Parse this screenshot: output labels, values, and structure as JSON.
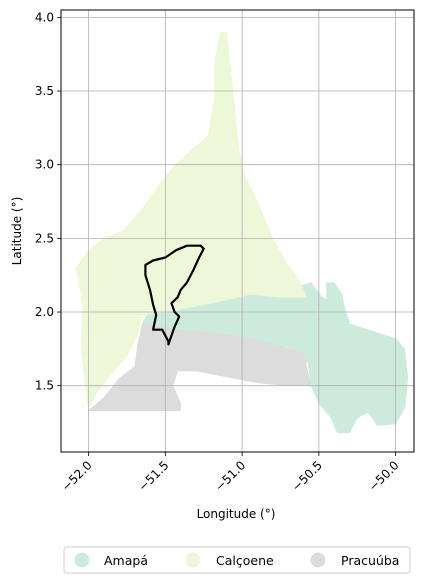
{
  "chart_data": {
    "type": "map",
    "xlabel": "Longitude (°)",
    "ylabel": "Latitude (°)",
    "xlim": [
      -52.18,
      -49.88
    ],
    "ylim": [
      1.05,
      4.05
    ],
    "xticks": [
      -52.0,
      -51.5,
      -51.0,
      -50.5,
      -50.0
    ],
    "xtick_labels": [
      "−52.0",
      "−51.5",
      "−51.0",
      "−50.5",
      "−50.0"
    ],
    "yticks": [
      1.5,
      2.0,
      2.5,
      3.0,
      3.5,
      4.0
    ],
    "ytick_labels": [
      "1.5",
      "2.0",
      "2.5",
      "3.0",
      "3.5",
      "4.0"
    ],
    "grid": true,
    "legend_position": "bottom-center",
    "regions": [
      {
        "name": "Amapá",
        "color": "#cdebdd",
        "polygons": [
          [
            [
              -51.62,
              1.98
            ],
            [
              -51.45,
              2.02
            ],
            [
              -51.2,
              2.08
            ],
            [
              -50.95,
              2.13
            ],
            [
              -50.7,
              2.15
            ],
            [
              -50.55,
              2.2
            ],
            [
              -50.48,
              2.1
            ],
            [
              -50.38,
              2.05
            ],
            [
              -50.3,
              1.92
            ],
            [
              -50.18,
              1.88
            ],
            [
              -50.0,
              1.82
            ],
            [
              -49.94,
              1.75
            ],
            [
              -49.92,
              1.55
            ],
            [
              -49.94,
              1.35
            ],
            [
              -50.0,
              1.24
            ],
            [
              -50.12,
              1.23
            ],
            [
              -50.18,
              1.32
            ],
            [
              -50.25,
              1.28
            ],
            [
              -50.3,
              1.18
            ],
            [
              -50.38,
              1.18
            ],
            [
              -50.42,
              1.28
            ],
            [
              -50.5,
              1.38
            ],
            [
              -50.55,
              1.5
            ],
            [
              -50.57,
              1.65
            ],
            [
              -50.7,
              1.76
            ],
            [
              -51.0,
              1.82
            ],
            [
              -51.3,
              1.84
            ],
            [
              -51.55,
              1.87
            ],
            [
              -51.65,
              1.92
            ]
          ],
          [
            [
              -50.45,
              2.2
            ],
            [
              -50.4,
              2.2
            ],
            [
              -50.35,
              2.12
            ],
            [
              -50.33,
              2.02
            ],
            [
              -50.3,
              1.93
            ],
            [
              -50.36,
              1.9
            ],
            [
              -50.42,
              1.98
            ],
            [
              -50.45,
              2.08
            ]
          ]
        ]
      },
      {
        "name": "Calçoene",
        "color": "#eef8d9",
        "polygons": [
          [
            [
              -51.14,
              3.9
            ],
            [
              -51.1,
              3.9
            ],
            [
              -51.08,
              3.7
            ],
            [
              -51.06,
              3.5
            ],
            [
              -51.04,
              3.3
            ],
            [
              -51.02,
              3.1
            ],
            [
              -50.98,
              2.92
            ],
            [
              -50.9,
              2.75
            ],
            [
              -50.8,
              2.5
            ],
            [
              -50.72,
              2.35
            ],
            [
              -50.62,
              2.2
            ],
            [
              -50.58,
              2.1
            ],
            [
              -50.75,
              2.1
            ],
            [
              -50.95,
              2.12
            ],
            [
              -51.2,
              2.06
            ],
            [
              -51.5,
              2.0
            ],
            [
              -51.65,
              1.98
            ],
            [
              -51.68,
              1.85
            ],
            [
              -51.75,
              1.7
            ],
            [
              -51.85,
              1.58
            ],
            [
              -51.95,
              1.45
            ],
            [
              -52.0,
              1.33
            ],
            [
              -52.02,
              1.5
            ],
            [
              -52.05,
              1.75
            ],
            [
              -52.04,
              2.05
            ],
            [
              -52.08,
              2.3
            ],
            [
              -52.0,
              2.42
            ],
            [
              -51.9,
              2.5
            ],
            [
              -51.78,
              2.55
            ],
            [
              -51.65,
              2.7
            ],
            [
              -51.55,
              2.85
            ],
            [
              -51.45,
              2.98
            ],
            [
              -51.35,
              3.08
            ],
            [
              -51.22,
              3.2
            ],
            [
              -51.18,
              3.45
            ],
            [
              -51.18,
              3.7
            ]
          ]
        ]
      },
      {
        "name": "Pracuúba",
        "color": "#dcdcdc",
        "polygons": [
          [
            [
              -52.0,
              1.33
            ],
            [
              -51.9,
              1.42
            ],
            [
              -51.8,
              1.55
            ],
            [
              -51.7,
              1.63
            ],
            [
              -51.68,
              1.78
            ],
            [
              -51.65,
              1.92
            ],
            [
              -51.55,
              1.9
            ],
            [
              -51.4,
              1.88
            ],
            [
              -51.2,
              1.86
            ],
            [
              -50.98,
              1.83
            ],
            [
              -50.75,
              1.77
            ],
            [
              -50.6,
              1.72
            ],
            [
              -50.55,
              1.5
            ],
            [
              -50.7,
              1.5
            ],
            [
              -50.9,
              1.52
            ],
            [
              -51.1,
              1.56
            ],
            [
              -51.3,
              1.6
            ],
            [
              -51.42,
              1.6
            ],
            [
              -51.45,
              1.5
            ],
            [
              -51.4,
              1.38
            ],
            [
              -51.4,
              1.33
            ],
            [
              -51.7,
              1.33
            ]
          ]
        ]
      }
    ],
    "outline": {
      "color": "#000000",
      "points": [
        [
          -51.63,
          2.32
        ],
        [
          -51.58,
          2.35
        ],
        [
          -51.5,
          2.37
        ],
        [
          -51.43,
          2.42
        ],
        [
          -51.36,
          2.45
        ],
        [
          -51.27,
          2.45
        ],
        [
          -51.25,
          2.43
        ],
        [
          -51.28,
          2.37
        ],
        [
          -51.32,
          2.28
        ],
        [
          -51.36,
          2.2
        ],
        [
          -51.4,
          2.15
        ],
        [
          -51.42,
          2.1
        ],
        [
          -51.46,
          2.06
        ],
        [
          -51.44,
          2.0
        ],
        [
          -51.41,
          1.97
        ],
        [
          -51.44,
          1.9
        ],
        [
          -51.48,
          1.78
        ],
        [
          -51.48,
          1.8
        ],
        [
          -51.52,
          1.88
        ],
        [
          -51.58,
          1.88
        ],
        [
          -51.56,
          1.98
        ],
        [
          -51.58,
          2.05
        ],
        [
          -51.6,
          2.15
        ],
        [
          -51.63,
          2.25
        ]
      ]
    }
  },
  "legend": {
    "items": [
      {
        "label": "Amapá",
        "color": "#cdebdd"
      },
      {
        "label": "Calçoene",
        "color": "#eef8d9"
      },
      {
        "label": "Pracuúba",
        "color": "#dcdcdc"
      }
    ]
  }
}
